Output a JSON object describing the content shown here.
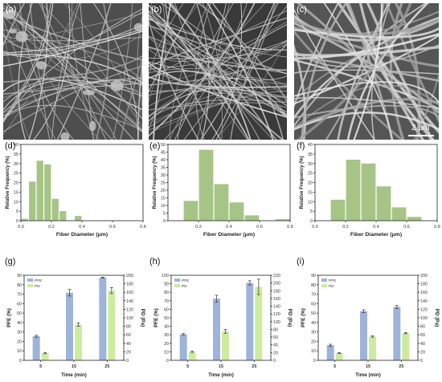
{
  "colors": {
    "green": "#a7c487",
    "blue": "#9eb3d9",
    "light_green": "#cdeb9e",
    "axis": "#222222"
  },
  "images": [
    {
      "letter": "(a)",
      "icon": "sem-fiber-micrograph"
    },
    {
      "letter": "(b)",
      "icon": "sem-fiber-micrograph"
    },
    {
      "letter": "(c)",
      "icon": "sem-fiber-micrograph",
      "scale_label": "2 μm"
    }
  ],
  "chart_data": [
    {
      "letter": "(d)",
      "type": "bar",
      "xlabel": "Fiber Diameter (μm)",
      "ylabel": "Relative Frequency (%)",
      "xlim": [
        0,
        0.8
      ],
      "ylim": [
        0,
        40
      ],
      "bar_width": 0.05,
      "x": [
        0.025,
        0.075,
        0.125,
        0.175,
        0.225,
        0.275,
        0.375
      ],
      "values": [
        1,
        20.5,
        31.5,
        29.5,
        11.5,
        5,
        2.5
      ],
      "xticks": [
        "0.0",
        "0.2",
        "0.4",
        "0.6",
        "0.8"
      ],
      "yticks": [
        "0",
        "5",
        "10",
        "15",
        "20",
        "25",
        "30",
        "35",
        "40"
      ]
    },
    {
      "letter": "(e)",
      "type": "bar",
      "xlabel": "Fiber Diameter (μm)",
      "ylabel": "Relative Frequency (%)",
      "xlim": [
        0,
        0.8
      ],
      "ylim": [
        0,
        50
      ],
      "bar_width": 0.1,
      "x": [
        0.15,
        0.25,
        0.35,
        0.45,
        0.55,
        0.75
      ],
      "values": [
        13,
        46.5,
        24,
        12,
        3.5,
        1
      ],
      "xticks": [
        "0.2",
        "0.4",
        "0.6",
        "0.8"
      ],
      "yticks": [
        "0",
        "5",
        "10",
        "15",
        "20",
        "25",
        "30",
        "35",
        "40",
        "45",
        "50"
      ]
    },
    {
      "letter": "(f)",
      "type": "bar",
      "xlabel": "Fiber Diameter (μm)",
      "ylabel": "Relative Frequency (%)",
      "xlim": [
        0,
        0.8
      ],
      "ylim": [
        0,
        40
      ],
      "bar_width": 0.1,
      "x": [
        0.15,
        0.25,
        0.35,
        0.45,
        0.55,
        0.65
      ],
      "values": [
        11,
        32,
        30,
        18,
        7,
        2
      ],
      "xticks": [
        "0.0",
        "0.2",
        "0.4",
        "0.6",
        "0.8"
      ],
      "yticks": [
        "0",
        "5",
        "10",
        "15",
        "20",
        "25",
        "30",
        "35",
        "40"
      ]
    },
    {
      "letter": "(g)",
      "type": "bar",
      "xlabel": "Time (min)",
      "ylabel": "PFE (%)",
      "y2label": "PD (Pa)",
      "categories": [
        "5",
        "15",
        "25"
      ],
      "ylim": [
        0,
        90
      ],
      "y2lim": [
        0,
        200
      ],
      "series": [
        {
          "name": "PFE",
          "axis": "left",
          "values": [
            25.5,
            71.5,
            87.5
          ],
          "errors": [
            1,
            3.5,
            0.5
          ]
        },
        {
          "name": "PD",
          "axis": "right",
          "values": [
            17,
            84,
            164
          ],
          "errors": [
            1.5,
            4,
            7
          ]
        }
      ],
      "yticks": [
        "0",
        "10",
        "20",
        "30",
        "40",
        "50",
        "60",
        "70",
        "80",
        "90"
      ],
      "y2ticks": [
        "0",
        "20",
        "40",
        "60",
        "80",
        "100",
        "120",
        "140",
        "160",
        "180",
        "200"
      ]
    },
    {
      "letter": "(h)",
      "type": "bar",
      "xlabel": "Time (min)",
      "ylabel": "PFE (%)",
      "y2label": "PD (Pa)",
      "categories": [
        "5",
        "15",
        "25"
      ],
      "ylim": [
        0,
        100
      ],
      "y2lim": [
        0,
        220
      ],
      "series": [
        {
          "name": "PFE",
          "axis": "left",
          "values": [
            30.5,
            72.5,
            91
          ],
          "errors": [
            1,
            4,
            2.5
          ]
        },
        {
          "name": "PD",
          "axis": "right",
          "values": [
            22,
            75,
            190
          ],
          "errors": [
            1.5,
            5,
            20
          ]
        }
      ],
      "yticks": [
        "0",
        "10",
        "20",
        "30",
        "40",
        "50",
        "60",
        "70",
        "80",
        "90",
        "100"
      ],
      "y2ticks": [
        "0",
        "20",
        "40",
        "60",
        "80",
        "100",
        "120",
        "140",
        "160",
        "180",
        "200",
        "220"
      ]
    },
    {
      "letter": "(i)",
      "type": "bar",
      "xlabel": "Time (min)",
      "ylabel": "PFE (%)",
      "y2label": "PD (Pa)",
      "categories": [
        "5",
        "15",
        "25"
      ],
      "ylim": [
        0,
        90
      ],
      "y2lim": [
        0,
        200
      ],
      "series": [
        {
          "name": "PFE",
          "axis": "left",
          "values": [
            16,
            52,
            56.5
          ],
          "errors": [
            1,
            1.5,
            1.5
          ]
        },
        {
          "name": "PD",
          "axis": "right",
          "values": [
            17,
            56,
            64
          ],
          "errors": [
            1,
            1.5,
            1.5
          ]
        }
      ],
      "yticks": [
        "0",
        "10",
        "20",
        "30",
        "40",
        "50",
        "60",
        "70",
        "80",
        "90"
      ],
      "y2ticks": [
        "0",
        "20",
        "40",
        "60",
        "80",
        "100",
        "120",
        "140",
        "160",
        "180",
        "200"
      ]
    }
  ]
}
